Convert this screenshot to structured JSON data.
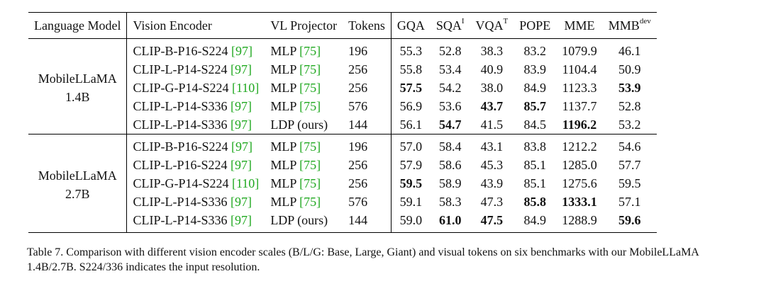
{
  "table": {
    "headers": {
      "language_model": "Language Model",
      "vision_encoder": "Vision Encoder",
      "vl_projector": "VL Projector",
      "tokens": "Tokens",
      "gqa": "GQA",
      "sqa": "SQA",
      "sqa_sup": "I",
      "vqa": "VQA",
      "vqa_sup": "T",
      "pope": "POPE",
      "mme": "MME",
      "mmb": "MMB",
      "mmb_sup": "dev"
    },
    "groups": [
      {
        "model_line1": "MobileLLaMA",
        "model_line2": "1.4B",
        "rows": [
          {
            "encoder": "CLIP-B-P16-S224 ",
            "encoder_cite": "[97]",
            "projector": "MLP ",
            "projector_cite": "[75]",
            "tokens": "196",
            "gqa": "55.3",
            "sqa": "52.8",
            "vqa": "38.3",
            "pope": "83.2",
            "mme": "1079.9",
            "mmb": "46.1"
          },
          {
            "encoder": "CLIP-L-P14-S224 ",
            "encoder_cite": "[97]",
            "projector": "MLP ",
            "projector_cite": "[75]",
            "tokens": "256",
            "gqa": "55.8",
            "sqa": "53.4",
            "vqa": "40.9",
            "pope": "83.9",
            "mme": "1104.4",
            "mmb": "50.9"
          },
          {
            "encoder": "CLIP-G-P14-S224 ",
            "encoder_cite": "[110]",
            "projector": "MLP ",
            "projector_cite": "[75]",
            "tokens": "256",
            "gqa": "57.5",
            "sqa": "54.2",
            "vqa": "38.0",
            "pope": "84.9",
            "mme": "1123.3",
            "mmb": "53.9"
          },
          {
            "encoder": "CLIP-L-P14-S336 ",
            "encoder_cite": "[97]",
            "projector": "MLP ",
            "projector_cite": "[75]",
            "tokens": "576",
            "gqa": "56.9",
            "sqa": "53.6",
            "vqa": "43.7",
            "pope": "85.7",
            "mme": "1137.7",
            "mmb": "52.8"
          },
          {
            "encoder": "CLIP-L-P14-S336 ",
            "encoder_cite": "[97]",
            "projector": "LDP (ours)",
            "projector_cite": "",
            "tokens": "144",
            "gqa": "56.1",
            "sqa": "54.7",
            "vqa": "41.5",
            "pope": "84.5",
            "mme": "1196.2",
            "mmb": "53.2"
          }
        ]
      },
      {
        "model_line1": "MobileLLaMA",
        "model_line2": "2.7B",
        "rows": [
          {
            "encoder": "CLIP-B-P16-S224 ",
            "encoder_cite": "[97]",
            "projector": "MLP ",
            "projector_cite": "[75]",
            "tokens": "196",
            "gqa": "57.0",
            "sqa": "58.4",
            "vqa": "43.1",
            "pope": "83.8",
            "mme": "1212.2",
            "mmb": "54.6"
          },
          {
            "encoder": "CLIP-L-P16-S224 ",
            "encoder_cite": "[97]",
            "projector": "MLP ",
            "projector_cite": "[75]",
            "tokens": "256",
            "gqa": "57.9",
            "sqa": "58.6",
            "vqa": "45.3",
            "pope": "85.1",
            "mme": "1285.0",
            "mmb": "57.7"
          },
          {
            "encoder": "CLIP-G-P14-S224 ",
            "encoder_cite": "[110]",
            "projector": "MLP ",
            "projector_cite": "[75]",
            "tokens": "256",
            "gqa": "59.5",
            "sqa": "58.9",
            "vqa": "43.9",
            "pope": "85.1",
            "mme": "1275.6",
            "mmb": "59.5"
          },
          {
            "encoder": "CLIP-L-P14-S336 ",
            "encoder_cite": "[97]",
            "projector": "MLP ",
            "projector_cite": "[75]",
            "tokens": "576",
            "gqa": "59.1",
            "sqa": "58.3",
            "vqa": "47.3",
            "pope": "85.8",
            "mme": "1333.1",
            "mmb": "57.1"
          },
          {
            "encoder": "CLIP-L-P14-S336 ",
            "encoder_cite": "[97]",
            "projector": "LDP (ours)",
            "projector_cite": "",
            "tokens": "144",
            "gqa": "59.0",
            "sqa": "61.0",
            "vqa": "47.5",
            "pope": "84.9",
            "mme": "1288.9",
            "mmb": "59.6"
          }
        ]
      }
    ]
  },
  "caption": "Table 7.  Comparison with different vision encoder scales (B/L/G: Base, Large, Giant) and visual tokens on six benchmarks with our MobileLLaMA 1.4B/2.7B. S224/336 indicates the input resolution.",
  "colors": {
    "citation": "#1fa81f",
    "text": "#111111",
    "rule": "#000000"
  }
}
